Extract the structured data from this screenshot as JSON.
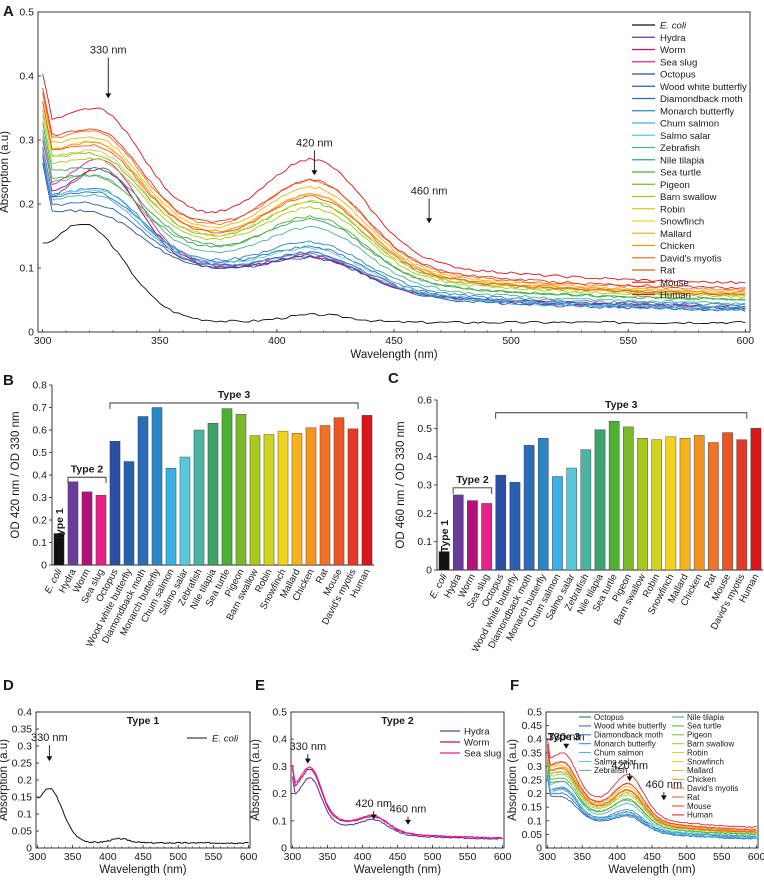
{
  "palette": {
    "E. coli": "#111111",
    "Hydra": "#6a3d9a",
    "Worm": "#b0127a",
    "Sea slug": "#e8208a",
    "Octopus": "#2b4fa3",
    "Wood white butterfly": "#2a5fb0",
    "Diamondback moth": "#2b6cb8",
    "Monarch butterfly": "#2b86c8",
    "Chum salmon": "#3ab0e6",
    "Salmo salar": "#5ac8dc",
    "Zebrafish": "#4ab3a2",
    "Nile tilapia": "#3ea36a",
    "Sea turtle": "#4cb030",
    "Pigeon": "#7aba2a",
    "Barn swallow": "#a9c820",
    "Robin": "#cfd220",
    "Snowfinch": "#f0d21e",
    "Mallard": "#f6b21c",
    "Chicken": "#f59320",
    "David's myotis": "#f07222",
    "Rat": "#ea5524",
    "Mouse": "#e63826",
    "Human": "#d8151b"
  },
  "panels": {
    "A": {
      "letter": "A",
      "annotations": [
        {
          "text": "330 nm",
          "x": 328,
          "y_text": 0.435,
          "y_tip": 0.365
        },
        {
          "text": "420 nm",
          "x": 416,
          "y_text": 0.29,
          "y_tip": 0.245
        },
        {
          "text": "460 nm",
          "x": 465,
          "y_text": 0.215,
          "y_tip": 0.17
        }
      ]
    },
    "B": {
      "letter": "B",
      "brackets": [
        {
          "label": "Type 1",
          "from": 0,
          "to": 0,
          "y": 0.18,
          "rotated": true
        },
        {
          "label": "Type 2",
          "from": 1,
          "to": 3,
          "y": 0.39
        },
        {
          "label": "Type 3",
          "from": 4,
          "to": 21,
          "y": 0.72
        }
      ]
    },
    "C": {
      "letter": "C",
      "brackets": [
        {
          "label": "Type 1",
          "from": 0,
          "to": 0,
          "y": 0.12,
          "rotated": true
        },
        {
          "label": "Type 2",
          "from": 1,
          "to": 3,
          "y": 0.29
        },
        {
          "label": "Type 3",
          "from": 4,
          "to": 21,
          "y": 0.555
        }
      ]
    },
    "D": {
      "letter": "D",
      "type_label": "Type 1",
      "annotations": [
        {
          "text": "330 nm",
          "x": 317,
          "y_text": 0.315,
          "y_tip": 0.255
        }
      ]
    },
    "E": {
      "letter": "E",
      "type_label": "Type 2",
      "annotations": [
        {
          "text": "330 nm",
          "x": 322,
          "y_text": 0.36,
          "y_tip": 0.31
        },
        {
          "text": "420 nm",
          "x": 416,
          "y_text": 0.15,
          "y_tip": 0.105
        },
        {
          "text": "460 nm",
          "x": 465,
          "y_text": 0.13,
          "y_tip": 0.085
        }
      ]
    },
    "F": {
      "letter": "F",
      "type_label": "Type 3",
      "annotations": [
        {
          "text": "330 nm",
          "x": 327,
          "y_text": 0.395,
          "y_tip": 0.365
        },
        {
          "text": "420 nm",
          "x": 418,
          "y_text": 0.29,
          "y_tip": 0.245
        },
        {
          "text": "460 nm",
          "x": 467,
          "y_text": 0.22,
          "y_tip": 0.175
        }
      ]
    }
  },
  "chart_data": [
    {
      "id": "A",
      "type": "line",
      "xlabel": "Wavelength (nm)",
      "ylabel": "Absorption (a.u)",
      "xlim": [
        298,
        602
      ],
      "ylim": [
        0,
        0.5
      ],
      "xticks": [
        300,
        350,
        400,
        450,
        500,
        550,
        600
      ],
      "yticks": [
        0,
        0.1,
        0.2,
        0.3,
        0.4,
        0.5
      ],
      "model": "log-normal curve parameters per series: b0 base at 300nm, k decay, a1/w1 330nm band, a2/w2 420nm band, bg baseline at 600nm",
      "series": [
        {
          "name": "E. coli",
          "b0": 0.06,
          "k": 0.02,
          "a1": 0.21,
          "w1": 26,
          "a2": 0.012,
          "w2": 20,
          "bg": 0.005
        },
        {
          "name": "Hydra",
          "b0": 0.19,
          "k": 0.013,
          "a1": 0.11,
          "w1": 20,
          "a2": 0.044,
          "w2": 28,
          "bg": 0.038
        },
        {
          "name": "Worm",
          "b0": 0.2,
          "k": 0.013,
          "a1": 0.1,
          "w1": 20,
          "a2": 0.046,
          "w2": 28,
          "bg": 0.036
        },
        {
          "name": "Sea slug",
          "b0": 0.21,
          "k": 0.013,
          "a1": 0.11,
          "w1": 20,
          "a2": 0.048,
          "w2": 28,
          "bg": 0.034
        },
        {
          "name": "Octopus",
          "b0": 0.185,
          "k": 0.012,
          "a1": 0.04,
          "w1": 22,
          "a2": 0.048,
          "w2": 30,
          "bg": 0.03
        },
        {
          "name": "Wood white butterfly",
          "b0": 0.19,
          "k": 0.012,
          "a1": 0.05,
          "w1": 22,
          "a2": 0.052,
          "w2": 30,
          "bg": 0.032
        },
        {
          "name": "Diamondback moth",
          "b0": 0.2,
          "k": 0.012,
          "a1": 0.06,
          "w1": 22,
          "a2": 0.057,
          "w2": 30,
          "bg": 0.034
        },
        {
          "name": "Monarch butterfly",
          "b0": 0.2,
          "k": 0.012,
          "a1": 0.065,
          "w1": 22,
          "a2": 0.062,
          "w2": 30,
          "bg": 0.038
        },
        {
          "name": "Chum salmon",
          "b0": 0.195,
          "k": 0.012,
          "a1": 0.06,
          "w1": 22,
          "a2": 0.05,
          "w2": 30,
          "bg": 0.03
        },
        {
          "name": "Salmo salar",
          "b0": 0.2,
          "k": 0.012,
          "a1": 0.065,
          "w1": 22,
          "a2": 0.055,
          "w2": 30,
          "bg": 0.033
        },
        {
          "name": "Zebrafish",
          "b0": 0.22,
          "k": 0.012,
          "a1": 0.07,
          "w1": 22,
          "a2": 0.078,
          "w2": 30,
          "bg": 0.04
        },
        {
          "name": "Nile tilapia",
          "b0": 0.24,
          "k": 0.012,
          "a1": 0.065,
          "w1": 22,
          "a2": 0.082,
          "w2": 30,
          "bg": 0.045
        },
        {
          "name": "Sea turtle",
          "b0": 0.23,
          "k": 0.012,
          "a1": 0.06,
          "w1": 22,
          "a2": 0.088,
          "w2": 30,
          "bg": 0.046
        },
        {
          "name": "Pigeon",
          "b0": 0.26,
          "k": 0.012,
          "a1": 0.07,
          "w1": 22,
          "a2": 0.098,
          "w2": 30,
          "bg": 0.052
        },
        {
          "name": "Barn swallow",
          "b0": 0.25,
          "k": 0.012,
          "a1": 0.07,
          "w1": 22,
          "a2": 0.094,
          "w2": 30,
          "bg": 0.05
        },
        {
          "name": "Robin",
          "b0": 0.26,
          "k": 0.012,
          "a1": 0.075,
          "w1": 22,
          "a2": 0.1,
          "w2": 30,
          "bg": 0.052
        },
        {
          "name": "Snowfinch",
          "b0": 0.27,
          "k": 0.012,
          "a1": 0.08,
          "w1": 22,
          "a2": 0.106,
          "w2": 30,
          "bg": 0.055
        },
        {
          "name": "Mallard",
          "b0": 0.28,
          "k": 0.012,
          "a1": 0.08,
          "w1": 22,
          "a2": 0.113,
          "w2": 30,
          "bg": 0.057
        },
        {
          "name": "Chicken",
          "b0": 0.27,
          "k": 0.012,
          "a1": 0.08,
          "w1": 22,
          "a2": 0.106,
          "w2": 30,
          "bg": 0.055
        },
        {
          "name": "David's myotis",
          "b0": 0.285,
          "k": 0.012,
          "a1": 0.085,
          "w1": 22,
          "a2": 0.12,
          "w2": 30,
          "bg": 0.06
        },
        {
          "name": "Rat",
          "b0": 0.27,
          "k": 0.012,
          "a1": 0.075,
          "w1": 22,
          "a2": 0.104,
          "w2": 30,
          "bg": 0.053
        },
        {
          "name": "Mouse",
          "b0": 0.29,
          "k": 0.012,
          "a1": 0.085,
          "w1": 22,
          "a2": 0.118,
          "w2": 30,
          "bg": 0.062
        },
        {
          "name": "Human",
          "b0": 0.31,
          "k": 0.012,
          "a1": 0.1,
          "w1": 22,
          "a2": 0.14,
          "w2": 30,
          "bg": 0.07
        }
      ]
    },
    {
      "id": "B",
      "type": "bar",
      "ylabel": "OD 420 nm / OD 330 nm",
      "ylim": [
        0,
        0.8
      ],
      "yticks": [
        0,
        0.1,
        0.2,
        0.3,
        0.4,
        0.5,
        0.6,
        0.7,
        0.8
      ],
      "categories": [
        "E. coli",
        "Hydra",
        "Worm",
        "Sea slug",
        "Octopus",
        "Wood white butterfly",
        "Diamondback moth",
        "Monarch butterfly",
        "Chum salmon",
        "Salmo salar",
        "Zebrafish",
        "Nile tilapia",
        "Sea turtle",
        "Pigeon",
        "Barn swallow",
        "Robin",
        "Snowfinch",
        "Mallard",
        "Chicken",
        "Rat",
        "Mouse",
        "David's myotis",
        "Human"
      ],
      "values": [
        0.14,
        0.37,
        0.325,
        0.31,
        0.55,
        0.46,
        0.66,
        0.7,
        0.43,
        0.48,
        0.6,
        0.63,
        0.695,
        0.67,
        0.575,
        0.58,
        0.595,
        0.585,
        0.61,
        0.62,
        0.655,
        0.605,
        0.665
      ],
      "colors": [
        "E. coli",
        "Hydra",
        "Worm",
        "Sea slug",
        "Octopus",
        "Wood white butterfly",
        "Diamondback moth",
        "Monarch butterfly",
        "Chum salmon",
        "Salmo salar",
        "Zebrafish",
        "Nile tilapia",
        "Sea turtle",
        "Pigeon",
        "Barn swallow",
        "Robin",
        "Snowfinch",
        "Mallard",
        "Chicken",
        "David's myotis",
        "Rat",
        "Mouse",
        "Human"
      ]
    },
    {
      "id": "C",
      "type": "bar",
      "ylabel": "OD 460 nm / OD 330 nm",
      "ylim": [
        0,
        0.6
      ],
      "yticks": [
        0,
        0.1,
        0.2,
        0.3,
        0.4,
        0.5,
        0.6
      ],
      "categories": [
        "E. coli",
        "Hydra",
        "Worm",
        "Sea slug",
        "Octopus",
        "Wood white butterfly",
        "Diamondback moth",
        "Monarch butterfly",
        "Chum salmon",
        "Salmo salar",
        "Zebrafish",
        "Nile tilapia",
        "Sea turtle",
        "Pigeon",
        "Barn swallow",
        "Robin",
        "Snowfinch",
        "Mallard",
        "Chicken",
        "Rat",
        "Mouse",
        "David's myotis",
        "Human"
      ],
      "values": [
        0.065,
        0.265,
        0.245,
        0.235,
        0.335,
        0.31,
        0.44,
        0.465,
        0.33,
        0.36,
        0.425,
        0.495,
        0.525,
        0.505,
        0.465,
        0.46,
        0.47,
        0.465,
        0.475,
        0.45,
        0.485,
        0.46,
        0.5
      ],
      "colors": [
        "E. coli",
        "Hydra",
        "Worm",
        "Sea slug",
        "Octopus",
        "Wood white butterfly",
        "Diamondback moth",
        "Monarch butterfly",
        "Chum salmon",
        "Salmo salar",
        "Zebrafish",
        "Nile tilapia",
        "Sea turtle",
        "Pigeon",
        "Barn swallow",
        "Robin",
        "Snowfinch",
        "Mallard",
        "Chicken",
        "David's myotis",
        "Rat",
        "Mouse",
        "Human"
      ]
    },
    {
      "id": "D",
      "type": "line",
      "xlabel": "Wavelength (nm)",
      "ylabel": "Absorption (a.u)",
      "xlim": [
        298,
        602
      ],
      "ylim": [
        0,
        0.4
      ],
      "xticks": [
        300,
        350,
        400,
        450,
        500,
        550,
        600
      ],
      "yticks": [
        0,
        0.05,
        0.1,
        0.15,
        0.2,
        0.25,
        0.3,
        0.35,
        0.4
      ],
      "legend": [
        "E. coli"
      ],
      "series": [
        {
          "name": "E. coli",
          "b0": 0.07,
          "k": 0.02,
          "a1": 0.205,
          "w1": 26,
          "a2": 0.012,
          "w2": 20,
          "bg": 0.005
        }
      ]
    },
    {
      "id": "E",
      "type": "line",
      "xlabel": "Wavelength (nm)",
      "ylabel": "Absorption (a.u)",
      "xlim": [
        298,
        602
      ],
      "ylim": [
        0,
        0.5
      ],
      "xticks": [
        300,
        350,
        400,
        450,
        500,
        550,
        600
      ],
      "yticks": [
        0,
        0.1,
        0.2,
        0.3,
        0.4,
        0.5
      ],
      "legend": [
        "Hydra",
        "Worm",
        "Sea slug"
      ],
      "series": [
        {
          "name": "Hydra",
          "b0": 0.17,
          "k": 0.014,
          "a1": 0.13,
          "w1": 20,
          "a2": 0.045,
          "w2": 28,
          "bg": 0.032
        },
        {
          "name": "Worm",
          "b0": 0.2,
          "k": 0.014,
          "a1": 0.14,
          "w1": 20,
          "a2": 0.048,
          "w2": 28,
          "bg": 0.035
        },
        {
          "name": "Sea slug",
          "b0": 0.21,
          "k": 0.014,
          "a1": 0.14,
          "w1": 20,
          "a2": 0.05,
          "w2": 28,
          "bg": 0.035
        }
      ]
    },
    {
      "id": "F",
      "type": "line",
      "xlabel": "Wavelength (nm)",
      "ylabel": "Absorption (a.u)",
      "xlim": [
        298,
        602
      ],
      "ylim": [
        0,
        0.5
      ],
      "xticks": [
        300,
        350,
        400,
        450,
        500,
        550,
        600
      ],
      "yticks": [
        0,
        0.05,
        0.1,
        0.15,
        0.2,
        0.25,
        0.3,
        0.35,
        0.4,
        0.45,
        0.5
      ],
      "legend_col1": [
        "Octopus",
        "Wood white butterfly",
        "Diamondback moth",
        "Monarch butterfly",
        "Chum salmon",
        "Salmo salar",
        "Zebrafish"
      ],
      "legend_col2": [
        "Nile tilapia",
        "Sea turtle",
        "Pigeon",
        "Barn swallow",
        "Robin",
        "Snowfinch",
        "Mallard",
        "Chicken",
        "David's myotis",
        "Rat",
        "Mouse",
        "Human"
      ],
      "series_ref": "A",
      "exclude": [
        "E. coli",
        "Hydra",
        "Worm",
        "Sea slug"
      ]
    }
  ]
}
